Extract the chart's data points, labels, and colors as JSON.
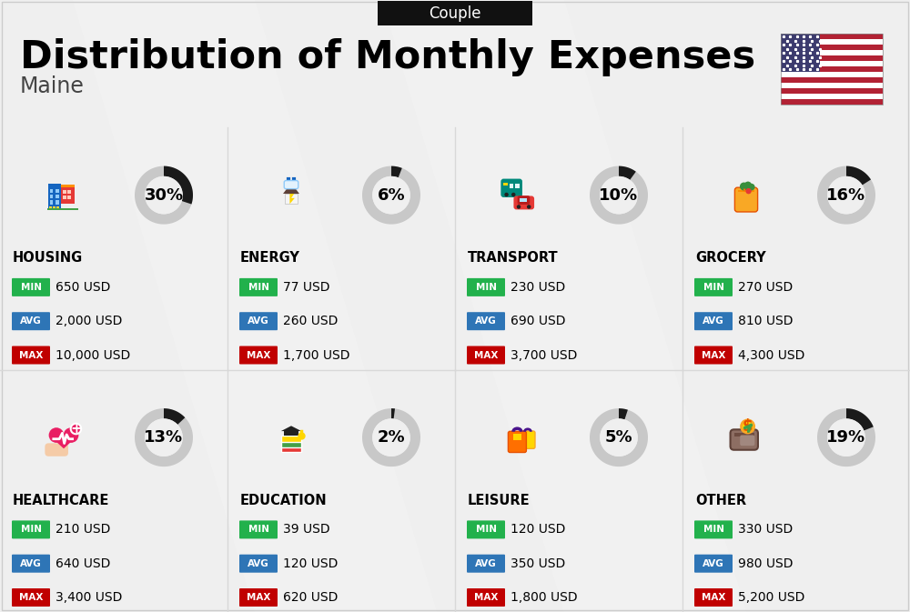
{
  "title": "Distribution of Monthly Expenses",
  "subtitle": "Maine",
  "top_label": "Couple",
  "bg_color": "#efefef",
  "categories": [
    {
      "name": "HOUSING",
      "percent": 30,
      "min": "650 USD",
      "avg": "2,000 USD",
      "max": "10,000 USD",
      "row": 0,
      "col": 0
    },
    {
      "name": "ENERGY",
      "percent": 6,
      "min": "77 USD",
      "avg": "260 USD",
      "max": "1,700 USD",
      "row": 0,
      "col": 1
    },
    {
      "name": "TRANSPORT",
      "percent": 10,
      "min": "230 USD",
      "avg": "690 USD",
      "max": "3,700 USD",
      "row": 0,
      "col": 2
    },
    {
      "name": "GROCERY",
      "percent": 16,
      "min": "270 USD",
      "avg": "810 USD",
      "max": "4,300 USD",
      "row": 0,
      "col": 3
    },
    {
      "name": "HEALTHCARE",
      "percent": 13,
      "min": "210 USD",
      "avg": "640 USD",
      "max": "3,400 USD",
      "row": 1,
      "col": 0
    },
    {
      "name": "EDUCATION",
      "percent": 2,
      "min": "39 USD",
      "avg": "120 USD",
      "max": "620 USD",
      "row": 1,
      "col": 1
    },
    {
      "name": "LEISURE",
      "percent": 5,
      "min": "120 USD",
      "avg": "350 USD",
      "max": "1,800 USD",
      "row": 1,
      "col": 2
    },
    {
      "name": "OTHER",
      "percent": 19,
      "min": "330 USD",
      "avg": "980 USD",
      "max": "5,200 USD",
      "row": 1,
      "col": 3
    }
  ],
  "min_color": "#22b14c",
  "avg_color": "#2e75b6",
  "max_color": "#c00000",
  "donut_dark": "#1a1a1a",
  "donut_gray": "#c8c8c8",
  "flag_stripes": [
    "#B22234",
    "#FFFFFF",
    "#B22234",
    "#FFFFFF",
    "#B22234",
    "#FFFFFF",
    "#B22234",
    "#FFFFFF",
    "#B22234",
    "#FFFFFF",
    "#B22234",
    "#FFFFFF",
    "#B22234"
  ],
  "flag_blue": "#3C3B6E"
}
